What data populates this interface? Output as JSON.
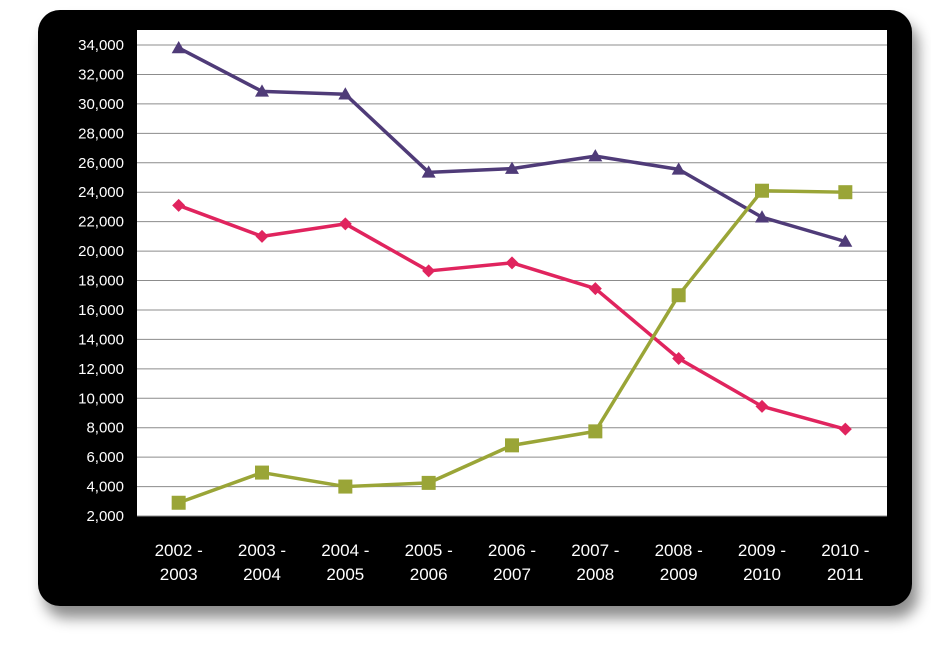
{
  "chart_data": {
    "type": "line",
    "categories": [
      [
        "2002 -",
        "2003"
      ],
      [
        "2003 -",
        "2004"
      ],
      [
        "2004 -",
        "2005"
      ],
      [
        "2005 -",
        "2006"
      ],
      [
        "2006 -",
        "2007"
      ],
      [
        "2007 -",
        "2008"
      ],
      [
        "2008 -",
        "2009"
      ],
      [
        "2009 -",
        "2010"
      ],
      [
        "2010 -",
        "2011"
      ]
    ],
    "ylim": [
      2000,
      34000
    ],
    "ytick_step": 2000,
    "ytick_labels": [
      "2,000",
      "4,000",
      "6,000",
      "8,000",
      "10,000",
      "12,000",
      "14,000",
      "16,000",
      "18,000",
      "20,000",
      "22,000",
      "24,000",
      "26,000",
      "28,000",
      "30,000",
      "32,000",
      "34,000"
    ],
    "grid": true,
    "legend": "none",
    "series": [
      {
        "marker": "triangle",
        "color": "#4f3b78",
        "values": [
          33800,
          30850,
          30650,
          25350,
          25600,
          26450,
          25550,
          22300,
          20650
        ]
      },
      {
        "marker": "diamond",
        "color": "#e0245e",
        "values": [
          23100,
          21000,
          21850,
          18650,
          19200,
          17450,
          12700,
          9450,
          7900
        ]
      },
      {
        "marker": "square",
        "color": "#9aa537",
        "values": [
          2900,
          4950,
          4000,
          4250,
          6800,
          7750,
          17000,
          24100,
          24000
        ]
      }
    ]
  }
}
